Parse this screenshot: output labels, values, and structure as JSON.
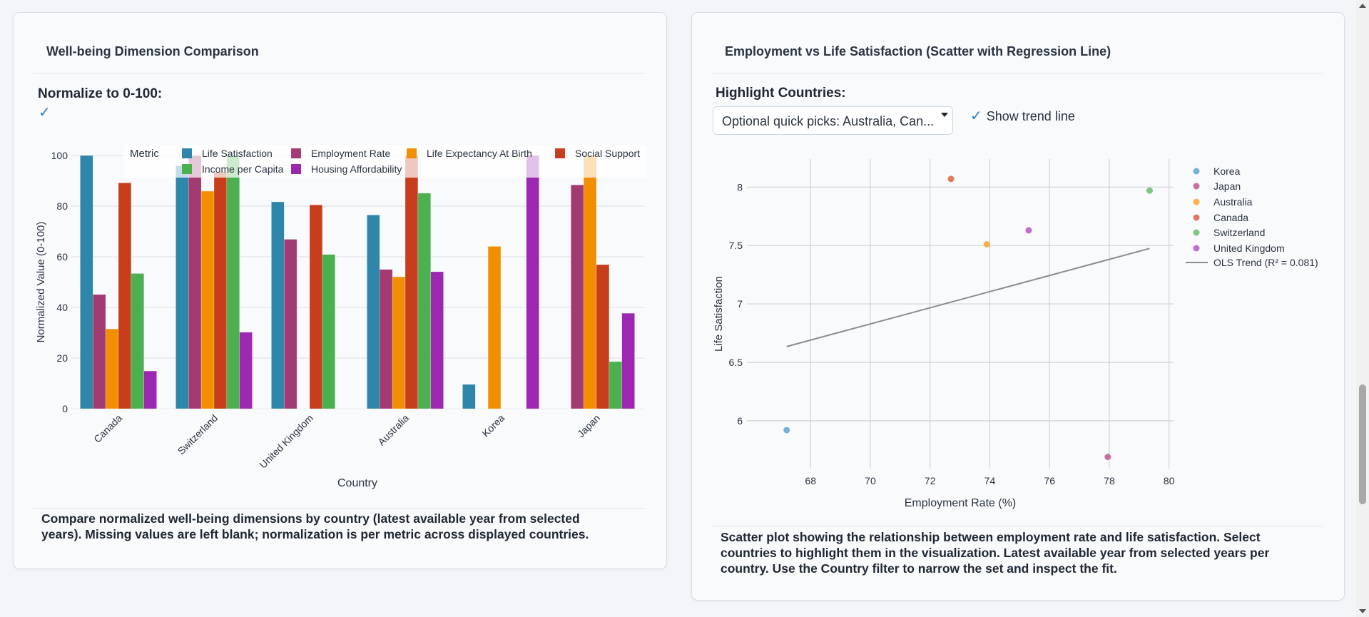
{
  "left_panel": {
    "title": "Well-being Dimension Comparison",
    "normalize_label": "Normalize to 0-100:",
    "normalize_checked": true,
    "checkmark": "✓",
    "caption_line1": "Compare normalized well-being dimensions by country (latest available year from selected",
    "caption_line2": "years). Missing values are left blank; normalization is per metric across displayed countries."
  },
  "right_panel": {
    "title": "Employment vs Life Satisfaction (Scatter with Regression Line)",
    "highlight_label": "Highlight Countries:",
    "highlight_placeholder": "Optional quick picks: Australia, Can...",
    "trend_checkmark": "✓",
    "trend_label": "Show trend line",
    "trend_checked": true,
    "caption_line1": "Scatter plot showing the relationship between employment rate and life satisfaction. Select",
    "caption_line2": "countries to highlight them in the visualization. Latest available year from selected years per",
    "caption_line3": "country. Use the Country filter to narrow the set and inspect the fit."
  },
  "chart_data": [
    {
      "type": "bar",
      "xlabel": "Country",
      "ylabel": "Normalized Value (0-100)",
      "ylim": [
        0,
        100
      ],
      "yticks": [
        0,
        20,
        40,
        60,
        80,
        100
      ],
      "grid": true,
      "legend_title": "Metric",
      "legend_placement": "top",
      "categories": [
        "Canada",
        "Switzerland",
        "United Kingdom",
        "Australia",
        "Korea",
        "Japan"
      ],
      "series": [
        {
          "name": "Life Satisfaction",
          "color": "#2e86ab",
          "values": [
            100,
            96,
            81.7,
            76.5,
            9.6,
            null
          ]
        },
        {
          "name": "Employment Rate",
          "color": "#a23b72",
          "values": [
            45.1,
            100,
            66.9,
            55,
            null,
            88.4
          ]
        },
        {
          "name": "Life Expectancy At Birth",
          "color": "#f18f01",
          "values": [
            31.5,
            85.9,
            null,
            52.1,
            64.1,
            100
          ]
        },
        {
          "name": "Social Support",
          "color": "#c73e1d",
          "values": [
            89.2,
            93.5,
            80.5,
            100,
            null,
            56.9
          ]
        },
        {
          "name": "Income per Capita",
          "color": "#4caf50",
          "values": [
            53.4,
            100,
            60.9,
            85.1,
            null,
            18.6
          ]
        },
        {
          "name": "Housing Affordability",
          "color": "#9c27b0",
          "values": [
            14.9,
            30.2,
            null,
            54.1,
            100,
            37.7
          ]
        }
      ]
    },
    {
      "type": "scatter",
      "xlabel": "Employment Rate (%)",
      "ylabel": "Life Satisfaction",
      "xlim": [
        65.87,
        80.15
      ],
      "ylim": [
        5.59,
        8.24
      ],
      "xticks": [
        68,
        70,
        72,
        74,
        76,
        78,
        80
      ],
      "yticks": [
        6,
        6.5,
        7,
        7.5,
        8
      ],
      "ytick_labels": [
        "6",
        "6.5",
        "7",
        "7.5",
        "8"
      ],
      "grid": true,
      "legend_placement": "right",
      "points": [
        {
          "name": "Korea",
          "x": 67.2,
          "y": 5.92,
          "color": "#74b3d6"
        },
        {
          "name": "Japan",
          "x": 77.95,
          "y": 5.69,
          "color": "#c8719f"
        },
        {
          "name": "Australia",
          "x": 73.9,
          "y": 7.51,
          "color": "#f7b24c"
        },
        {
          "name": "Canada",
          "x": 72.7,
          "y": 8.07,
          "color": "#e07a5f"
        },
        {
          "name": "Switzerland",
          "x": 79.35,
          "y": 7.97,
          "color": "#81c784"
        },
        {
          "name": "United Kingdom",
          "x": 75.3,
          "y": 7.63,
          "color": "#c46bd3"
        }
      ],
      "trend": {
        "name": "OLS Trend (R² = 0.081)",
        "color": "#8c8c8c",
        "x": [
          67.2,
          79.35
        ],
        "y": [
          6.635,
          7.475
        ]
      }
    }
  ]
}
